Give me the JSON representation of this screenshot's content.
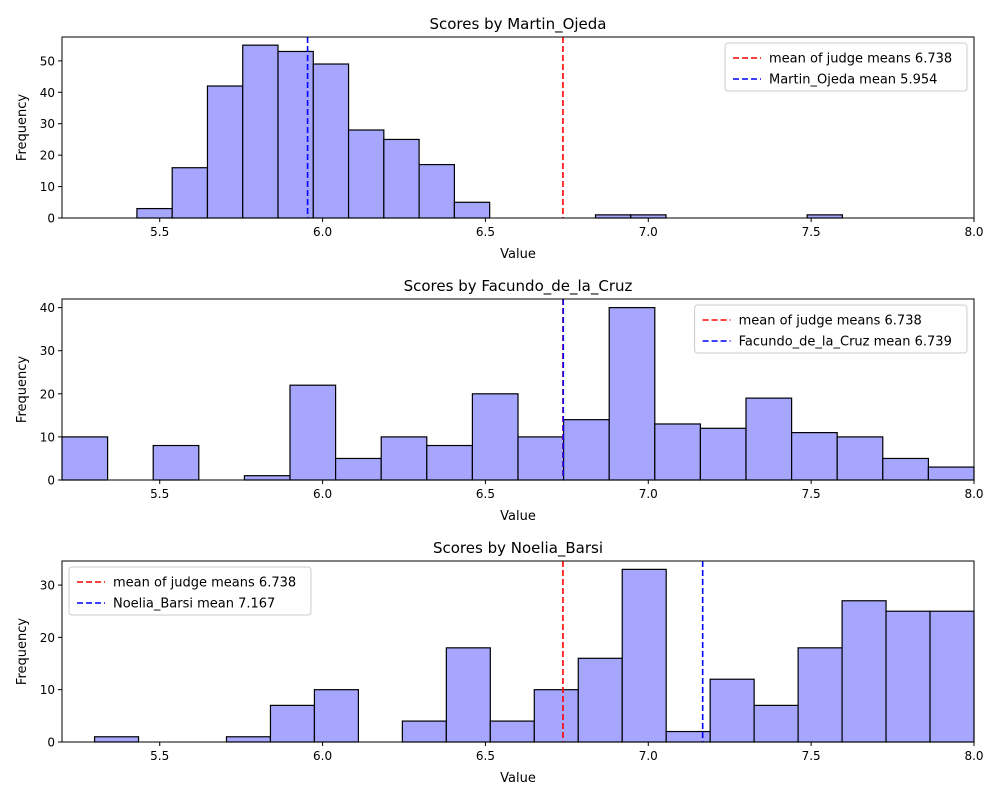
{
  "colors": {
    "bar_fill": "#a6a6ff",
    "bar_edge": "#000000",
    "overall_mean_line": "#ff0000",
    "judge_mean_line": "#0000ff"
  },
  "chart_data": [
    {
      "type": "bar",
      "subtype": "histogram",
      "title": "Scores by Martin_Ojeda",
      "xlabel": "Value",
      "ylabel": "Frequency",
      "xlim": [
        5.2,
        8.0
      ],
      "ylim": [
        0,
        57.6
      ],
      "xticks": [
        5.5,
        6.0,
        6.5,
        7.0,
        7.5,
        8.0
      ],
      "xtick_labels": [
        "5.5",
        "6.0",
        "6.5",
        "7.0",
        "7.5",
        "8.0"
      ],
      "yticks": [
        0,
        10,
        20,
        30,
        40,
        50
      ],
      "ytick_labels": [
        "0",
        "10",
        "20",
        "30",
        "40",
        "50"
      ],
      "bin_start": 5.43,
      "bin_width": 0.1083,
      "counts": [
        3,
        16,
        42,
        55,
        53,
        49,
        28,
        25,
        17,
        5,
        0,
        0,
        0,
        1,
        1,
        0,
        0,
        0,
        0,
        1
      ],
      "vlines": [
        {
          "label": "mean of judge means 6.738",
          "value": 6.738,
          "color": "#ff0000"
        },
        {
          "label": "Martin_Ojeda mean 5.954",
          "value": 5.954,
          "color": "#0000ff"
        }
      ],
      "legend_position": "top-right",
      "grid": false
    },
    {
      "type": "bar",
      "subtype": "histogram",
      "title": "Scores by Facundo_de_la_Cruz",
      "xlabel": "Value",
      "ylabel": "Frequency",
      "xlim": [
        5.2,
        8.0
      ],
      "ylim": [
        0,
        42
      ],
      "xticks": [
        5.5,
        6.0,
        6.5,
        7.0,
        7.5,
        8.0
      ],
      "xtick_labels": [
        "5.5",
        "6.0",
        "6.5",
        "7.0",
        "7.5",
        "8.0"
      ],
      "yticks": [
        0,
        10,
        20,
        30,
        40
      ],
      "ytick_labels": [
        "0",
        "10",
        "20",
        "30",
        "40"
      ],
      "bin_start": 5.2,
      "bin_width": 0.14,
      "counts": [
        10,
        0,
        8,
        0,
        1,
        22,
        5,
        10,
        8,
        20,
        10,
        14,
        40,
        13,
        12,
        19,
        11,
        10,
        5,
        3
      ],
      "vlines": [
        {
          "label": "mean of judge means 6.738",
          "value": 6.738,
          "color": "#ff0000"
        },
        {
          "label": "Facundo_de_la_Cruz mean 6.739",
          "value": 6.739,
          "color": "#0000ff"
        }
      ],
      "legend_position": "top-right",
      "grid": false
    },
    {
      "type": "bar",
      "subtype": "histogram",
      "title": "Scores by Noelia_Barsi",
      "xlabel": "Value",
      "ylabel": "Frequency",
      "xlim": [
        5.2,
        8.0
      ],
      "ylim": [
        0,
        34.6
      ],
      "xticks": [
        5.5,
        6.0,
        6.5,
        7.0,
        7.5,
        8.0
      ],
      "xtick_labels": [
        "5.5",
        "6.0",
        "6.5",
        "7.0",
        "7.5",
        "8.0"
      ],
      "yticks": [
        0,
        10,
        20,
        30
      ],
      "ytick_labels": [
        "0",
        "10",
        "20",
        "30"
      ],
      "bin_start": 5.3,
      "bin_width": 0.135,
      "counts": [
        1,
        0,
        0,
        1,
        7,
        10,
        0,
        4,
        18,
        4,
        10,
        16,
        33,
        2,
        12,
        7,
        18,
        27,
        25,
        25
      ],
      "vlines": [
        {
          "label": "mean of judge means 6.738",
          "value": 6.738,
          "color": "#ff0000"
        },
        {
          "label": "Noelia_Barsi mean 7.167",
          "value": 7.167,
          "color": "#0000ff"
        }
      ],
      "legend_position": "top-left",
      "grid": false
    }
  ]
}
